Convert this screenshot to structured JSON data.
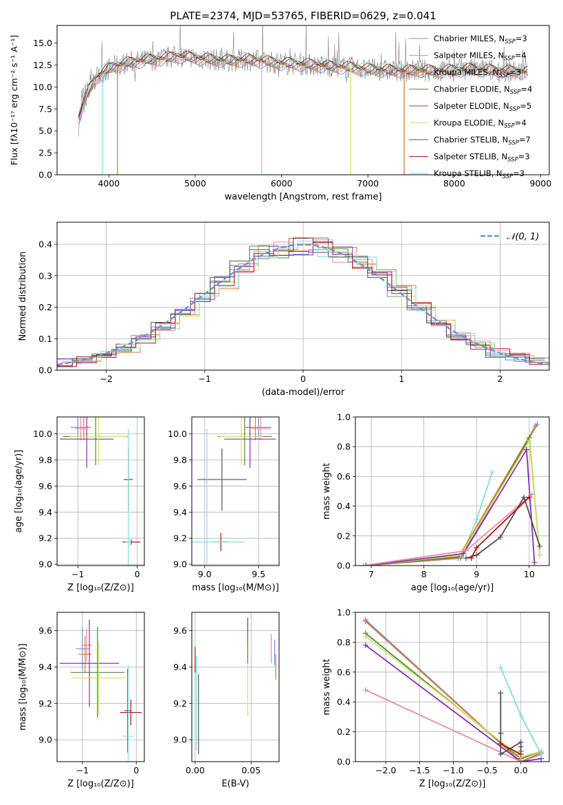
{
  "title": "PLATE=2374, MJD=53765, FIBERID=0629, z=0.041",
  "colors": {
    "Chabrier MILES": "#6b8fe0",
    "Salpeter MILES": "#e88aa8",
    "Kroupa MILES": "#e07b2a",
    "Chabrier ELODIE": "#4a8a3a",
    "Salpeter ELODIE": "#8a2ab0",
    "Kroupa ELODIE": "#d8e060",
    "Chabrier STELIB": "#505050",
    "Salpeter STELIB": "#b01010",
    "Kroupa STELIB": "#80dde0",
    "gaussian": "#6b8fe0"
  },
  "chart_data": [
    {
      "id": "spectrum",
      "type": "line",
      "xlabel": "wavelength [Angstrom, rest frame]",
      "ylabel": "Flux [fλ10⁻¹⁷ erg cm⁻² s⁻¹ A⁻¹]",
      "xlim": [
        3400,
        9100
      ],
      "ylim": [
        0,
        17
      ],
      "xticks": [
        4000,
        5000,
        6000,
        7000,
        8000,
        9000
      ],
      "yticks": [
        0.0,
        2.5,
        5.0,
        7.5,
        10.0,
        12.5,
        15.0
      ],
      "legend_position": "top-right",
      "legend": [
        {
          "label": "Chabrier MILES, N",
          "sub": "SSP",
          "tail": "=3"
        },
        {
          "label": "Salpeter MILES, N",
          "sub": "SSP",
          "tail": "=4"
        },
        {
          "label": "Kroupa MILES, N",
          "sub": "SSP",
          "tail": "=3"
        },
        {
          "label": "Chabrier ELODIE, N",
          "sub": "SSP",
          "tail": "=4"
        },
        {
          "label": "Salpeter ELODIE, N",
          "sub": "SSP",
          "tail": "=5"
        },
        {
          "label": "Kroupa ELODIE, N",
          "sub": "SSP",
          "tail": "=4"
        },
        {
          "label": "Chabrier STELIB, N",
          "sub": "SSP",
          "tail": "=7"
        },
        {
          "label": "Salpeter STELIB, N",
          "sub": "SSP",
          "tail": "=3"
        },
        {
          "label": "Kroupa STELIB, N",
          "sub": "SSP",
          "tail": "=3"
        }
      ],
      "continuum": [
        [
          3650,
          6.5
        ],
        [
          3700,
          8.0
        ],
        [
          3760,
          9.5
        ],
        [
          3850,
          11.0
        ],
        [
          3950,
          11.8
        ],
        [
          4050,
          12.3
        ],
        [
          4200,
          12.7
        ],
        [
          4400,
          13.0
        ],
        [
          4600,
          13.2
        ],
        [
          4800,
          13.5
        ],
        [
          5000,
          13.3
        ],
        [
          5200,
          13.1
        ],
        [
          5400,
          13.0
        ],
        [
          5600,
          13.1
        ],
        [
          5800,
          12.9
        ],
        [
          6000,
          12.7
        ],
        [
          6200,
          12.6
        ],
        [
          6400,
          12.5
        ],
        [
          6600,
          12.3
        ],
        [
          6800,
          12.2
        ],
        [
          7000,
          12.0
        ],
        [
          7200,
          11.9
        ],
        [
          7400,
          11.8
        ],
        [
          7600,
          11.9
        ],
        [
          7800,
          11.8
        ],
        [
          8000,
          11.9
        ],
        [
          8200,
          12.0
        ],
        [
          8400,
          11.9
        ],
        [
          8600,
          11.8
        ],
        [
          8800,
          11.7
        ]
      ],
      "notches": [
        [
          3925,
          0
        ],
        [
          4100,
          0
        ],
        [
          5770,
          0
        ],
        [
          6800,
          0
        ],
        [
          7420,
          0
        ]
      ]
    },
    {
      "id": "residuals",
      "type": "line",
      "xlabel": "(data-model)/error",
      "ylabel": "Normed distribution",
      "xlim": [
        -2.5,
        2.5
      ],
      "ylim": [
        0,
        0.47
      ],
      "xticks": [
        -2,
        -1,
        0,
        1,
        2
      ],
      "xticklabels": [
        "−2",
        "−1",
        "0",
        "1",
        "2"
      ],
      "yticks": [
        0.0,
        0.1,
        0.2,
        0.3,
        0.4
      ],
      "legend_position": "top-right",
      "gaussian_label": "𝒩(0, 1)",
      "hist_bins": [
        -2.5,
        -2.3,
        -2.1,
        -1.9,
        -1.7,
        -1.5,
        -1.3,
        -1.1,
        -0.9,
        -0.7,
        -0.5,
        -0.3,
        -0.1,
        0.1,
        0.3,
        0.5,
        0.7,
        0.9,
        1.1,
        1.3,
        1.5,
        1.7,
        1.9,
        2.1,
        2.3,
        2.5
      ],
      "hist_center": [
        0.025,
        0.035,
        0.05,
        0.07,
        0.1,
        0.14,
        0.18,
        0.23,
        0.28,
        0.33,
        0.37,
        0.38,
        0.39,
        0.39,
        0.37,
        0.34,
        0.3,
        0.25,
        0.2,
        0.15,
        0.11,
        0.08,
        0.055,
        0.04,
        0.03
      ]
    },
    {
      "id": "age-vs-Z",
      "type": "scatter",
      "xlabel": "Z [log₁₀(Z/Z⊙)]",
      "ylabel": "age  [log₁₀(age/yr)]",
      "xlim": [
        -1.35,
        0.12
      ],
      "ylim": [
        8.99,
        10.13
      ],
      "xticks": [
        -1,
        0
      ],
      "xticklabels": [
        "−1",
        "0"
      ],
      "yticks": [
        9.0,
        9.2,
        9.4,
        9.6,
        9.8,
        10.0
      ],
      "points": [
        {
          "s": "Chabrier MILES",
          "x": -1.0,
          "y": 10.05,
          "xerr": 0.12,
          "yerr": 0.08
        },
        {
          "s": "Salpeter MILES",
          "x": -0.95,
          "y": 10.04,
          "xerr": 0.1,
          "yerr": 0.09
        },
        {
          "s": "Kroupa MILES",
          "x": -0.9,
          "y": 10.05,
          "xerr": 0.12,
          "yerr": 0.1
        },
        {
          "s": "Chabrier ELODIE",
          "x": -0.7,
          "y": 9.98,
          "xerr": 0.55,
          "yerr": 0.22
        },
        {
          "s": "Salpeter ELODIE",
          "x": -0.85,
          "y": 9.96,
          "xerr": 0.45,
          "yerr": 0.22
        },
        {
          "s": "Kroupa ELODIE",
          "x": -0.65,
          "y": 9.98,
          "xerr": 0.48,
          "yerr": 0.22
        },
        {
          "s": "Chabrier STELIB",
          "x": -0.15,
          "y": 9.65,
          "xerr": 0.08,
          "yerr": 0.24
        },
        {
          "s": "Salpeter STELIB",
          "x": -0.1,
          "y": 9.17,
          "xerr": 0.15,
          "yerr": 0.02
        },
        {
          "s": "Kroupa STELIB",
          "x": -0.15,
          "y": 9.17,
          "xerr": 0.05,
          "yerr": 0.87
        }
      ]
    },
    {
      "id": "age-vs-mass",
      "type": "scatter",
      "xlabel": "mass [log₁₀(M/M⊙)]",
      "ylabel": "",
      "xlim": [
        8.88,
        9.69
      ],
      "ylim": [
        8.99,
        10.13
      ],
      "xticks": [
        9.0,
        9.5
      ],
      "yticks": [
        9.0,
        9.2,
        9.4,
        9.6,
        9.8,
        10.0
      ],
      "points": [
        {
          "s": "Chabrier MILES",
          "x": 9.5,
          "y": 10.05,
          "xerr": 0.12,
          "yerr": 0.08
        },
        {
          "s": "Salpeter MILES",
          "x": 9.52,
          "y": 10.04,
          "xerr": 0.09,
          "yerr": 0.09
        },
        {
          "s": "Kroupa MILES",
          "x": 9.47,
          "y": 10.05,
          "xerr": 0.1,
          "yerr": 0.1
        },
        {
          "s": "Chabrier ELODIE",
          "x": 9.37,
          "y": 9.98,
          "xerr": 0.25,
          "yerr": 0.22
        },
        {
          "s": "Salpeter ELODIE",
          "x": 9.42,
          "y": 9.96,
          "xerr": 0.24,
          "yerr": 0.22
        },
        {
          "s": "Kroupa ELODIE",
          "x": 9.34,
          "y": 9.98,
          "xerr": 0.2,
          "yerr": 0.22
        },
        {
          "s": "Chabrier STELIB",
          "x": 9.16,
          "y": 9.65,
          "xerr": 0.23,
          "yerr": 0.24
        },
        {
          "s": "Salpeter STELIB",
          "x": 9.15,
          "y": 9.17,
          "xerr": 0.07,
          "yerr": 0.07
        },
        {
          "s": "Kroupa STELIB",
          "x": 9.02,
          "y": 9.17,
          "xerr": 0.35,
          "yerr": 0.87
        }
      ]
    },
    {
      "id": "weight-vs-age",
      "type": "line",
      "xlabel": "age  [log₁₀(age/yr)]",
      "ylabel": "mass weight",
      "xlim": [
        6.7,
        10.38
      ],
      "ylim": [
        0,
        1.0
      ],
      "xticks": [
        7,
        8,
        9,
        10
      ],
      "yticks": [
        0.0,
        0.2,
        0.4,
        0.6,
        0.8,
        1.0
      ],
      "series": [
        {
          "s": "Kroupa STELIB",
          "x": [
            6.9,
            8.7,
            9.0,
            9.3
          ],
          "y": [
            0.0,
            0.05,
            0.31,
            0.63
          ]
        },
        {
          "s": "Chabrier MILES",
          "x": [
            6.9,
            8.7,
            10.15
          ],
          "y": [
            0.0,
            0.05,
            0.95
          ]
        },
        {
          "s": "Kroupa MILES",
          "x": [
            6.9,
            8.65,
            10.12
          ],
          "y": [
            0.0,
            0.05,
            0.94
          ]
        },
        {
          "s": "Chabrier ELODIE",
          "x": [
            6.9,
            8.7,
            10.0,
            10.2
          ],
          "y": [
            0.0,
            0.06,
            0.86,
            0.07
          ]
        },
        {
          "s": "Kroupa ELODIE",
          "x": [
            6.9,
            8.7,
            10.0,
            10.2
          ],
          "y": [
            0.0,
            0.07,
            0.84,
            0.07
          ]
        },
        {
          "s": "Salpeter ELODIE",
          "x": [
            6.9,
            8.75,
            9.95,
            10.1
          ],
          "y": [
            0.0,
            0.08,
            0.78,
            0.02
          ]
        },
        {
          "s": "Salpeter MILES",
          "x": [
            6.85,
            8.8,
            10.05
          ],
          "y": [
            0.0,
            0.1,
            0.48
          ]
        },
        {
          "s": "Chabrier STELIB",
          "x": [
            8.8,
            9.0,
            9.45,
            9.9,
            10.2
          ],
          "y": [
            0.05,
            0.07,
            0.19,
            0.46,
            0.13
          ]
        },
        {
          "s": "Salpeter STELIB",
          "x": [
            8.9,
            9.0,
            10.0
          ],
          "y": [
            0.05,
            0.12,
            0.46
          ]
        }
      ]
    },
    {
      "id": "mass-vs-Z",
      "type": "scatter",
      "xlabel": "Z [log₁₀(Z/Z⊙)]",
      "ylabel": "mass [log₁₀(M/M⊙)]",
      "xlim": [
        -1.47,
        0.15
      ],
      "ylim": [
        8.88,
        9.7
      ],
      "xticks": [
        -1,
        0
      ],
      "xticklabels": [
        "−1",
        "0"
      ],
      "yticks": [
        9.0,
        9.2,
        9.4,
        9.6
      ],
      "points": [
        {
          "s": "Chabrier MILES",
          "x": -1.0,
          "y": 9.5,
          "xerr": 0.12,
          "yerr": 0.12
        },
        {
          "s": "Salpeter MILES",
          "x": -0.92,
          "y": 9.52,
          "xerr": 0.1,
          "yerr": 0.09
        },
        {
          "s": "Kroupa MILES",
          "x": -0.95,
          "y": 9.47,
          "xerr": 0.12,
          "yerr": 0.1
        },
        {
          "s": "Chabrier ELODIE",
          "x": -0.72,
          "y": 9.37,
          "xerr": 0.5,
          "yerr": 0.25
        },
        {
          "s": "Salpeter ELODIE",
          "x": -0.87,
          "y": 9.42,
          "xerr": 0.55,
          "yerr": 0.24
        },
        {
          "s": "Kroupa ELODIE",
          "x": -0.7,
          "y": 9.34,
          "xerr": 0.5,
          "yerr": 0.2
        },
        {
          "s": "Chabrier STELIB",
          "x": -0.16,
          "y": 9.16,
          "xerr": 0.06,
          "yerr": 0.23
        },
        {
          "s": "Salpeter STELIB",
          "x": -0.1,
          "y": 9.15,
          "xerr": 0.2,
          "yerr": 0.07
        },
        {
          "s": "Kroupa STELIB",
          "x": -0.15,
          "y": 9.02,
          "xerr": 0.1,
          "yerr": 0.39
        }
      ]
    },
    {
      "id": "mass-vs-EBV",
      "type": "scatter",
      "xlabel": "E(B-V)",
      "ylabel": "",
      "xlim": [
        -0.003,
        0.075
      ],
      "ylim": [
        8.88,
        9.7
      ],
      "xticks": [
        0.0,
        0.05
      ],
      "xticklabels": [
        "0.00",
        "0.05"
      ],
      "yticks": [
        9.0,
        9.2,
        9.4,
        9.6
      ],
      "points": [
        {
          "s": "Salpeter STELIB",
          "x": 0.0,
          "y": 9.44,
          "yerr": 0.07
        },
        {
          "s": "Kroupa STELIB",
          "x": 0.001,
          "y": 9.2,
          "yerr": 0.26
        },
        {
          "s": "Chabrier STELIB",
          "x": 0.003,
          "y": 9.14,
          "yerr": 0.22
        },
        {
          "s": "Salpeter ELODIE",
          "x": 0.047,
          "y": 9.6,
          "yerr": 0.07
        },
        {
          "s": "Kroupa ELODIE",
          "x": 0.047,
          "y": 9.35,
          "yerr": 0.22
        },
        {
          "s": "Chabrier ELODIE",
          "x": 0.047,
          "y": 9.5,
          "yerr": 0.08
        },
        {
          "s": "Salpeter MILES",
          "x": 0.068,
          "y": 9.5,
          "yerr": 0.08
        },
        {
          "s": "Chabrier MILES",
          "x": 0.071,
          "y": 9.48,
          "yerr": 0.07
        },
        {
          "s": "Kroupa MILES",
          "x": 0.072,
          "y": 9.4,
          "yerr": 0.07
        }
      ]
    },
    {
      "id": "weight-vs-Z",
      "type": "line",
      "xlabel": "Z [log₁₀(Z/Z⊙)]",
      "ylabel": "mass weight",
      "xlim": [
        -2.45,
        0.42
      ],
      "ylim": [
        0,
        1.0
      ],
      "xticks": [
        -2.0,
        -1.5,
        -1.0,
        -0.5,
        0.0
      ],
      "xticklabels": [
        "−2.0",
        "−1.5",
        "−1.0",
        "−0.5",
        "0.0"
      ],
      "yticks": [
        0.0,
        0.2,
        0.4,
        0.6,
        0.8,
        1.0
      ],
      "series": [
        {
          "s": "Chabrier MILES",
          "x": [
            -2.3,
            0.0,
            0.3
          ],
          "y": [
            0.95,
            0.0,
            0.05
          ]
        },
        {
          "s": "Kroupa MILES",
          "x": [
            -2.3,
            0.0,
            0.3
          ],
          "y": [
            0.94,
            0.0,
            0.06
          ]
        },
        {
          "s": "Chabrier ELODIE",
          "x": [
            -2.3,
            0.0,
            0.3
          ],
          "y": [
            0.86,
            0.02,
            0.07
          ]
        },
        {
          "s": "Kroupa ELODIE",
          "x": [
            -2.3,
            0.0,
            0.3
          ],
          "y": [
            0.84,
            0.03,
            0.07
          ]
        },
        {
          "s": "Salpeter ELODIE",
          "x": [
            -2.3,
            0.0,
            0.3
          ],
          "y": [
            0.78,
            0.0,
            0.02
          ]
        },
        {
          "s": "Salpeter MILES",
          "x": [
            -2.3,
            0.0
          ],
          "y": [
            0.48,
            0.0
          ]
        },
        {
          "s": "Kroupa STELIB",
          "x": [
            -0.3,
            0.0,
            0.3
          ],
          "y": [
            0.63,
            0.31,
            0.05
          ]
        },
        {
          "s": "Chabrier STELIB",
          "x": [
            -0.3,
            -0.3,
            -0.3,
            0.0,
            0.0,
            0.0
          ],
          "y": [
            0.46,
            0.19,
            0.05,
            0.13,
            0.07,
            0.1
          ]
        },
        {
          "s": "Salpeter STELIB",
          "x": [
            -0.3,
            0.0
          ],
          "y": [
            0.12,
            0.05
          ]
        }
      ]
    }
  ]
}
